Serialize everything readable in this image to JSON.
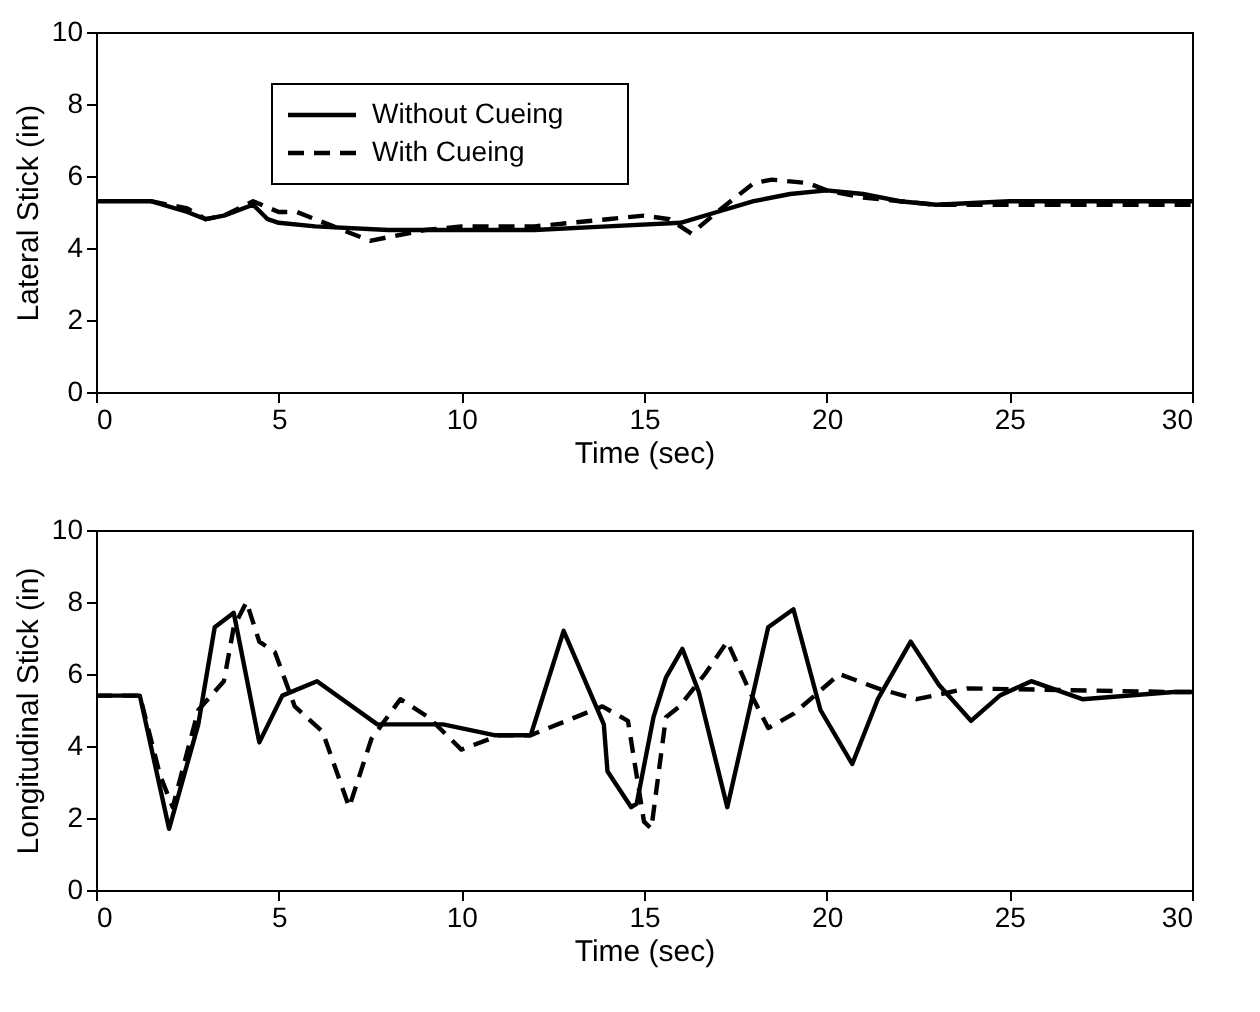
{
  "chart_data": [
    {
      "type": "line",
      "ylabel": "Lateral Stick (in)",
      "xlabel": "Time (sec)",
      "xlim": [
        0,
        30
      ],
      "xticks": [
        0,
        5,
        10,
        15,
        20,
        25,
        30
      ],
      "ylim": [
        0,
        10
      ],
      "yticks": [
        0,
        2,
        4,
        6,
        8,
        10
      ],
      "grid": false,
      "legend": "top left",
      "series": [
        {
          "name": "Without Cueing",
          "color": "#000000",
          "line_style": "solid",
          "x": [
            0,
            1.5,
            2.5,
            3,
            3.5,
            4.3,
            4.7,
            5,
            6,
            8,
            10,
            12,
            14,
            16,
            17,
            18,
            19,
            20,
            21,
            22,
            23,
            25,
            30
          ],
          "values": [
            5.3,
            5.3,
            5.0,
            4.8,
            4.9,
            5.2,
            4.8,
            4.7,
            4.6,
            4.5,
            4.5,
            4.5,
            4.6,
            4.7,
            5.0,
            5.3,
            5.5,
            5.6,
            5.5,
            5.3,
            5.2,
            5.3,
            5.3
          ]
        },
        {
          "name": "With Cueing",
          "color": "#000000",
          "line_style": "dashed",
          "x": [
            1.5,
            2.5,
            3,
            3.5,
            4.3,
            5,
            5.5,
            6.5,
            7.5,
            9,
            10,
            12,
            14,
            15,
            15.7,
            16.3,
            17,
            18,
            18.5,
            19.5,
            20,
            21,
            22,
            23,
            25,
            30
          ],
          "values": [
            5.3,
            5.1,
            4.8,
            4.9,
            5.3,
            5.0,
            5.0,
            4.6,
            4.2,
            4.5,
            4.6,
            4.6,
            4.8,
            4.9,
            4.8,
            4.4,
            5.0,
            5.8,
            5.9,
            5.8,
            5.6,
            5.4,
            5.3,
            5.2,
            5.2,
            5.2
          ]
        }
      ]
    },
    {
      "type": "line",
      "ylabel": "Longitudinal Stick (in)",
      "xlabel": "Time (sec)",
      "xlim": [
        0,
        30
      ],
      "xticks": [
        0,
        5,
        10,
        15,
        20,
        25,
        30
      ],
      "ylim": [
        0,
        10
      ],
      "yticks": [
        0,
        2,
        4,
        6,
        8,
        10
      ],
      "grid": false,
      "legend": false,
      "series": [
        {
          "color": "#000000",
          "line_style": "solid",
          "x": [
            0,
            1.2,
            2.0,
            2.8,
            3.25,
            3.77,
            4.47,
            5.1,
            6.05,
            7.7,
            9.5,
            10.9,
            11.9,
            12.8,
            13.9,
            14.0,
            14.65,
            14.8,
            15.26,
            15.6,
            16.05,
            16.5,
            17.28,
            18.4,
            19.09,
            19.83,
            20.7,
            21.4,
            22.3,
            23.07,
            23.95,
            24.74,
            25.6,
            27.0,
            29.5,
            30
          ],
          "values": [
            5.4,
            5.4,
            1.7,
            4.6,
            7.3,
            7.7,
            4.1,
            5.4,
            5.8,
            4.6,
            4.6,
            4.3,
            4.3,
            7.2,
            4.6,
            3.3,
            2.3,
            2.4,
            4.8,
            5.9,
            6.7,
            5.5,
            2.3,
            7.3,
            7.8,
            5.0,
            3.5,
            5.3,
            6.9,
            5.7,
            4.7,
            5.4,
            5.8,
            5.3,
            5.5,
            5.5
          ]
        },
        {
          "color": "#000000",
          "line_style": "dashed",
          "x": [
            0,
            1.2,
            1.75,
            2.1,
            2.8,
            3.5,
            3.77,
            4.12,
            4.47,
            4.9,
            5.44,
            6.2,
            6.93,
            7.54,
            8.33,
            9.1,
            10.0,
            11.05,
            11.9,
            13.86,
            14.56,
            15.0,
            15.2,
            15.6,
            15.97,
            16.67,
            17.28,
            17.9,
            18.4,
            19.1,
            20.35,
            21.4,
            22.46,
            23.86,
            29.5,
            30
          ],
          "values": [
            5.4,
            5.4,
            3.2,
            2.3,
            5.0,
            5.8,
            7.3,
            8.0,
            6.9,
            6.6,
            5.1,
            4.4,
            2.3,
            4.2,
            5.3,
            4.8,
            3.9,
            4.3,
            4.3,
            5.1,
            4.7,
            1.9,
            1.7,
            4.8,
            5.1,
            6.0,
            6.9,
            5.5,
            4.5,
            4.9,
            6.0,
            5.6,
            5.3,
            5.6,
            5.5,
            5.5
          ]
        }
      ]
    }
  ]
}
